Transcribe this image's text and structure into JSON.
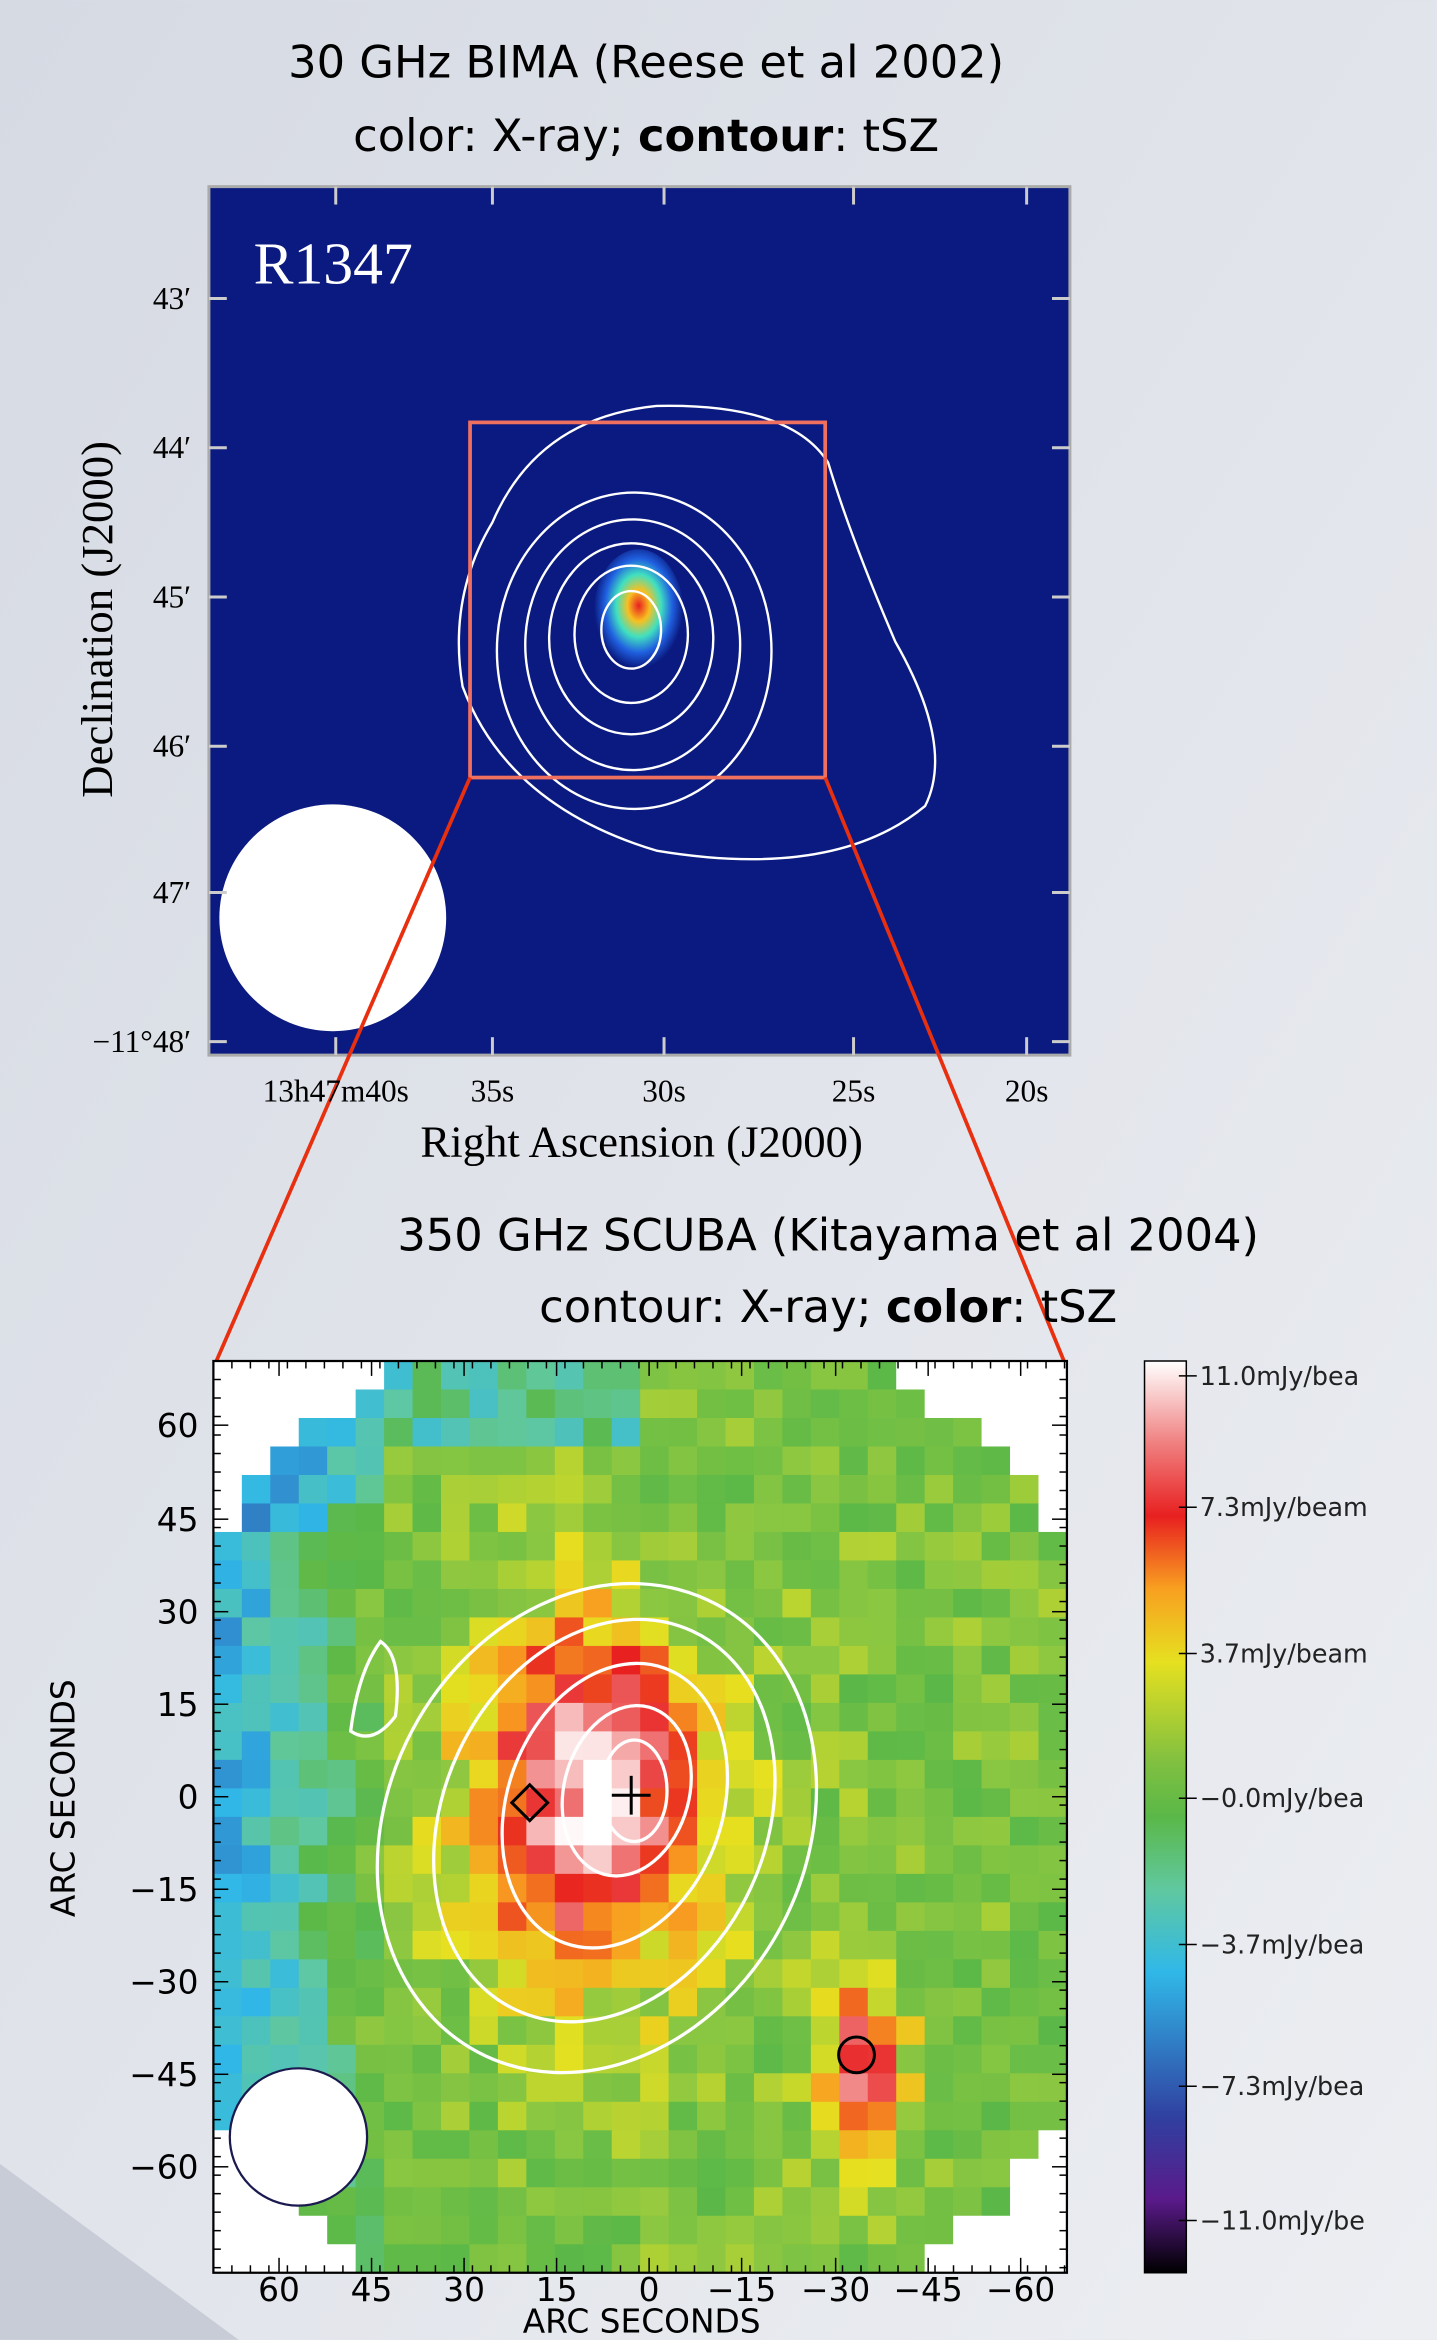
{
  "top_panel": {
    "title_lines": [
      "30 GHz BIMA (Reese et al 2002)",
      {
        "parts": [
          "color: X-ray; ",
          "contour",
          ": tSZ"
        ]
      }
    ],
    "label": "R1347",
    "y_tick_labels": [
      "43′",
      "44′",
      "45′",
      "46′",
      "47′",
      "−11°48′"
    ],
    "x_tick_labels": [
      "13h47m40s",
      "35s",
      "30s",
      "25s",
      "20s"
    ],
    "x_axis_label": "Right Ascension (J2000)",
    "y_axis_label": "Declination (J2000)"
  },
  "bottom_panel": {
    "title_lines": [
      "350 GHz SCUBA (Kitayama et al 2004)",
      {
        "parts": [
          "contour: X-ray; ",
          "color",
          ": tSZ"
        ]
      }
    ],
    "y_tick_labels": [
      "60",
      "45",
      "30",
      "15",
      "0",
      "−15",
      "−30",
      "−45",
      "−60"
    ],
    "x_tick_labels": [
      "60",
      "45",
      "30",
      "15",
      "0",
      "−15",
      "−30",
      "−45",
      "−60"
    ],
    "x_axis_label": "ARC SECONDS",
    "y_axis_label": "ARC SECONDS"
  },
  "colorbar": {
    "labels": [
      "11.0mJy/bea",
      "7.3mJy/beam",
      "3.7mJy/beam",
      "−0.0mJy/bea",
      "−3.7mJy/bea",
      "−7.3mJy/bea",
      "−11.0mJy/be"
    ]
  }
}
